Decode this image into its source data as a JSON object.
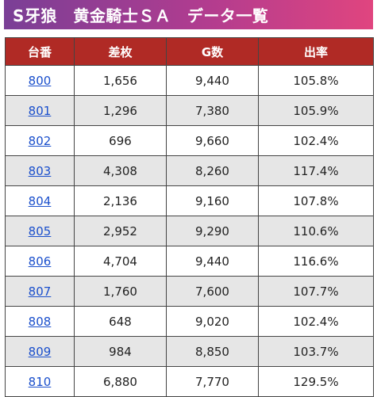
{
  "title": "S牙狼　黄金騎士ＳＡ　データ一覧",
  "table": {
    "headers": [
      "台番",
      "差枚",
      "G数",
      "出率"
    ],
    "rows": [
      {
        "machine": "800",
        "diff": "1,656",
        "games": "9,440",
        "rate": "105.8%"
      },
      {
        "machine": "801",
        "diff": "1,296",
        "games": "7,380",
        "rate": "105.9%"
      },
      {
        "machine": "802",
        "diff": "696",
        "games": "9,660",
        "rate": "102.4%"
      },
      {
        "machine": "803",
        "diff": "4,308",
        "games": "8,260",
        "rate": "117.4%"
      },
      {
        "machine": "804",
        "diff": "2,136",
        "games": "9,160",
        "rate": "107.8%"
      },
      {
        "machine": "805",
        "diff": "2,952",
        "games": "9,290",
        "rate": "110.6%"
      },
      {
        "machine": "806",
        "diff": "4,704",
        "games": "9,440",
        "rate": "116.6%"
      },
      {
        "machine": "807",
        "diff": "1,760",
        "games": "7,600",
        "rate": "107.7%"
      },
      {
        "machine": "808",
        "diff": "648",
        "games": "9,020",
        "rate": "102.4%"
      },
      {
        "machine": "809",
        "diff": "984",
        "games": "8,850",
        "rate": "103.7%"
      },
      {
        "machine": "810",
        "diff": "6,880",
        "games": "7,770",
        "rate": "129.5%"
      }
    ]
  },
  "colors": {
    "header_bg": "#b02a25",
    "link": "#1a4fcc",
    "stripe": "#e6e6e6"
  }
}
